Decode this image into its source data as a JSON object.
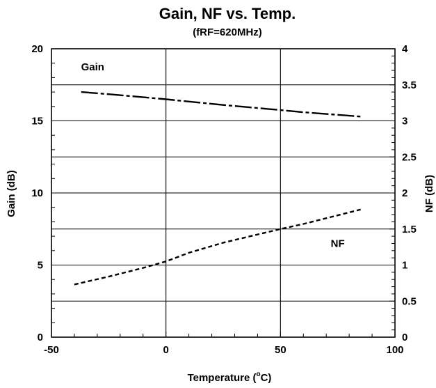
{
  "chart_data": {
    "type": "line",
    "title": "Gain, NF vs. Temp.",
    "subtitle": "(fRF=620MHz)",
    "xlabel": "Temperature (°C)",
    "xlabel_parts": {
      "pre": "Temperature (",
      "sup": "o",
      "post": "C)"
    },
    "ylabel_left": "Gain (dB)",
    "ylabel_right": "NF (dB)",
    "xlim": [
      -50,
      100
    ],
    "ylim_left": [
      0,
      20
    ],
    "ylim_right": [
      0,
      4
    ],
    "x_ticks": [
      "-50",
      "0",
      "50",
      "100"
    ],
    "y_left_ticks": [
      "0",
      "5",
      "10",
      "15",
      "20"
    ],
    "y_right_ticks": [
      "0",
      "0.5",
      "1",
      "1.5",
      "2",
      "2.5",
      "3",
      "3.5",
      "4"
    ],
    "grid": true,
    "series": [
      {
        "name": "Gain",
        "axis": "left",
        "dash": "long-dash",
        "color": "#000000",
        "x": [
          -37,
          -25,
          0,
          25,
          50,
          60,
          85
        ],
        "y": [
          17.0,
          16.85,
          16.5,
          16.1,
          15.75,
          15.6,
          15.3
        ]
      },
      {
        "name": "NF",
        "axis": "right",
        "dash": "short-dash",
        "color": "#000000",
        "x": [
          -40,
          -25,
          -10,
          0,
          10,
          25,
          50,
          60,
          85
        ],
        "y": [
          0.73,
          0.84,
          0.96,
          1.05,
          1.17,
          1.31,
          1.5,
          1.57,
          1.77
        ]
      }
    ]
  }
}
